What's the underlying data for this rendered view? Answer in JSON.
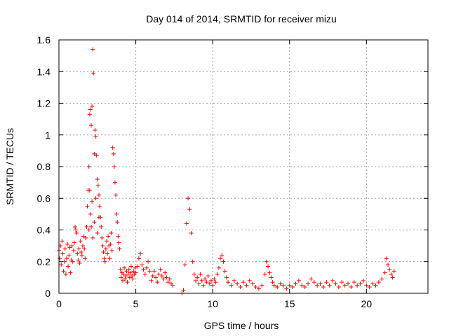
{
  "chart_data": {
    "type": "scatter",
    "title": "Day 014 of 2014, SRMTID for receiver mizu",
    "xlabel": "GPS time / hours",
    "ylabel": "SRMTID / TECUs",
    "xlim": [
      0,
      24
    ],
    "ylim": [
      0,
      1.6
    ],
    "xticks": [
      0,
      5,
      10,
      15,
      20
    ],
    "xtick_labels": [
      "0",
      "5",
      "10",
      "15",
      "20"
    ],
    "yticks": [
      0,
      0.2,
      0.4,
      0.6,
      0.8,
      1.0,
      1.2,
      1.4,
      1.6
    ],
    "ytick_labels": [
      "0",
      "0.2",
      "0.4",
      "0.6",
      "0.8",
      "1",
      "1.2",
      "1.4",
      "1.6"
    ],
    "grid": true,
    "marker": "+",
    "color": "#ff0000",
    "series": [
      {
        "name": "SRMTID",
        "points": [
          [
            0.0,
            0.27
          ],
          [
            0.05,
            0.22
          ],
          [
            0.1,
            0.3
          ],
          [
            0.15,
            0.18
          ],
          [
            0.2,
            0.33
          ],
          [
            0.25,
            0.25
          ],
          [
            0.3,
            0.14
          ],
          [
            0.35,
            0.2
          ],
          [
            0.4,
            0.28
          ],
          [
            0.45,
            0.12
          ],
          [
            0.5,
            0.22
          ],
          [
            0.55,
            0.31
          ],
          [
            0.6,
            0.17
          ],
          [
            0.65,
            0.24
          ],
          [
            0.7,
            0.29
          ],
          [
            0.75,
            0.13
          ],
          [
            0.8,
            0.21
          ],
          [
            0.85,
            0.3
          ],
          [
            0.9,
            0.2
          ],
          [
            0.95,
            0.27
          ],
          [
            1.0,
            0.32
          ],
          [
            1.05,
            0.42
          ],
          [
            1.1,
            0.4
          ],
          [
            1.15,
            0.38
          ],
          [
            1.2,
            0.25
          ],
          [
            1.25,
            0.21
          ],
          [
            1.3,
            0.28
          ],
          [
            1.35,
            0.19
          ],
          [
            1.4,
            0.33
          ],
          [
            1.45,
            0.26
          ],
          [
            1.5,
            0.24
          ],
          [
            1.55,
            0.3
          ],
          [
            1.6,
            0.36
          ],
          [
            1.65,
            0.28
          ],
          [
            1.7,
            0.22
          ],
          [
            1.75,
            0.35
          ],
          [
            1.8,
            0.42
          ],
          [
            1.85,
            0.55
          ],
          [
            1.9,
            0.65
          ],
          [
            1.95,
            0.8
          ],
          [
            2.0,
            1.13
          ],
          [
            2.05,
            1.16
          ],
          [
            2.1,
            1.06
          ],
          [
            2.15,
            1.18
          ],
          [
            2.2,
            1.54
          ],
          [
            2.25,
            1.39
          ],
          [
            2.3,
            0.88
          ],
          [
            2.35,
            1.03
          ],
          [
            2.4,
            0.99
          ],
          [
            2.45,
            0.87
          ],
          [
            2.5,
            0.72
          ],
          [
            2.55,
            0.68
          ],
          [
            2.6,
            0.62
          ],
          [
            2.65,
            0.55
          ],
          [
            2.7,
            0.48
          ],
          [
            2.75,
            0.42
          ],
          [
            2.8,
            0.35
          ],
          [
            2.85,
            0.3
          ],
          [
            2.9,
            0.26
          ],
          [
            2.95,
            0.22
          ],
          [
            2.0,
            0.65
          ],
          [
            2.05,
            0.5
          ],
          [
            2.1,
            0.42
          ],
          [
            2.15,
            0.58
          ],
          [
            2.2,
            0.35
          ],
          [
            2.3,
            0.45
          ],
          [
            2.4,
            0.6
          ],
          [
            2.5,
            0.38
          ],
          [
            2.6,
            0.48
          ],
          [
            1.95,
            0.4
          ],
          [
            3.0,
            0.2
          ],
          [
            3.05,
            0.28
          ],
          [
            3.1,
            0.33
          ],
          [
            3.15,
            0.25
          ],
          [
            3.2,
            0.36
          ],
          [
            3.25,
            0.3
          ],
          [
            3.3,
            0.22
          ],
          [
            3.35,
            0.31
          ],
          [
            3.4,
            0.38
          ],
          [
            3.45,
            0.27
          ],
          [
            3.5,
            0.92
          ],
          [
            3.55,
            0.88
          ],
          [
            3.6,
            0.8
          ],
          [
            3.65,
            0.7
          ],
          [
            3.7,
            0.62
          ],
          [
            3.75,
            0.5
          ],
          [
            3.8,
            0.45
          ],
          [
            3.85,
            0.36
          ],
          [
            3.9,
            0.32
          ],
          [
            3.95,
            0.28
          ],
          [
            4.0,
            0.15
          ],
          [
            4.05,
            0.1
          ],
          [
            4.1,
            0.13
          ],
          [
            4.15,
            0.08
          ],
          [
            4.2,
            0.12
          ],
          [
            4.25,
            0.16
          ],
          [
            4.3,
            0.09
          ],
          [
            4.35,
            0.11
          ],
          [
            4.4,
            0.14
          ],
          [
            4.45,
            0.07
          ],
          [
            4.5,
            0.12
          ],
          [
            4.55,
            0.15
          ],
          [
            4.6,
            0.1
          ],
          [
            4.65,
            0.13
          ],
          [
            4.7,
            0.17
          ],
          [
            4.75,
            0.11
          ],
          [
            4.8,
            0.09
          ],
          [
            4.85,
            0.14
          ],
          [
            4.9,
            0.12
          ],
          [
            4.95,
            0.16
          ],
          [
            5.0,
            0.13
          ],
          [
            5.1,
            0.17
          ],
          [
            5.2,
            0.22
          ],
          [
            5.3,
            0.25
          ],
          [
            5.4,
            0.18
          ],
          [
            5.5,
            0.15
          ],
          [
            5.6,
            0.12
          ],
          [
            5.7,
            0.16
          ],
          [
            5.8,
            0.2
          ],
          [
            5.9,
            0.14
          ],
          [
            6.0,
            0.08
          ],
          [
            6.1,
            0.11
          ],
          [
            6.2,
            0.14
          ],
          [
            6.3,
            0.1
          ],
          [
            6.4,
            0.07
          ],
          [
            6.5,
            0.12
          ],
          [
            6.6,
            0.15
          ],
          [
            6.7,
            0.11
          ],
          [
            6.8,
            0.09
          ],
          [
            6.9,
            0.13
          ],
          [
            7.0,
            0.1
          ],
          [
            7.1,
            0.07
          ],
          [
            7.2,
            0.09
          ],
          [
            7.3,
            0.06
          ],
          [
            7.4,
            0.05
          ],
          [
            8.0,
            0.0
          ],
          [
            8.1,
            0.02
          ],
          [
            8.2,
            0.18
          ],
          [
            8.3,
            0.44
          ],
          [
            8.4,
            0.6
          ],
          [
            8.5,
            0.53
          ],
          [
            8.6,
            0.38
          ],
          [
            8.7,
            0.2
          ],
          [
            8.8,
            0.12
          ],
          [
            8.9,
            0.08
          ],
          [
            9.0,
            0.1
          ],
          [
            9.1,
            0.06
          ],
          [
            9.2,
            0.12
          ],
          [
            9.3,
            0.08
          ],
          [
            9.4,
            0.05
          ],
          [
            9.5,
            0.09
          ],
          [
            9.6,
            0.07
          ],
          [
            9.7,
            0.11
          ],
          [
            9.8,
            0.06
          ],
          [
            9.9,
            0.08
          ],
          [
            10.0,
            0.05
          ],
          [
            10.1,
            0.09
          ],
          [
            10.2,
            0.07
          ],
          [
            10.3,
            0.12
          ],
          [
            10.4,
            0.16
          ],
          [
            10.5,
            0.22
          ],
          [
            10.6,
            0.24
          ],
          [
            10.7,
            0.2
          ],
          [
            10.8,
            0.14
          ],
          [
            10.9,
            0.1
          ],
          [
            11.0,
            0.07
          ],
          [
            11.2,
            0.05
          ],
          [
            11.4,
            0.08
          ],
          [
            11.6,
            0.06
          ],
          [
            11.8,
            0.04
          ],
          [
            12.0,
            0.07
          ],
          [
            12.2,
            0.05
          ],
          [
            12.4,
            0.08
          ],
          [
            12.6,
            0.06
          ],
          [
            12.8,
            0.04
          ],
          [
            13.0,
            0.03
          ],
          [
            13.2,
            0.05
          ],
          [
            13.4,
            0.12
          ],
          [
            13.5,
            0.2
          ],
          [
            13.6,
            0.17
          ],
          [
            13.7,
            0.13
          ],
          [
            13.8,
            0.1
          ],
          [
            13.9,
            0.07
          ],
          [
            14.0,
            0.05
          ],
          [
            14.2,
            0.04
          ],
          [
            14.4,
            0.06
          ],
          [
            14.6,
            0.05
          ],
          [
            14.8,
            0.03
          ],
          [
            15.0,
            0.05
          ],
          [
            15.2,
            0.04
          ],
          [
            15.4,
            0.06
          ],
          [
            15.6,
            0.08
          ],
          [
            15.8,
            0.05
          ],
          [
            16.0,
            0.04
          ],
          [
            16.2,
            0.06
          ],
          [
            16.4,
            0.09
          ],
          [
            16.6,
            0.07
          ],
          [
            16.8,
            0.05
          ],
          [
            17.0,
            0.06
          ],
          [
            17.2,
            0.04
          ],
          [
            17.4,
            0.07
          ],
          [
            17.6,
            0.05
          ],
          [
            17.8,
            0.08
          ],
          [
            18.0,
            0.06
          ],
          [
            18.2,
            0.04
          ],
          [
            18.4,
            0.07
          ],
          [
            18.6,
            0.05
          ],
          [
            18.8,
            0.06
          ],
          [
            19.0,
            0.04
          ],
          [
            19.2,
            0.07
          ],
          [
            19.4,
            0.05
          ],
          [
            19.6,
            0.06
          ],
          [
            19.8,
            0.08
          ],
          [
            20.0,
            0.05
          ],
          [
            20.2,
            0.04
          ],
          [
            20.4,
            0.06
          ],
          [
            20.6,
            0.05
          ],
          [
            20.8,
            0.07
          ],
          [
            21.0,
            0.09
          ],
          [
            21.2,
            0.13
          ],
          [
            21.3,
            0.22
          ],
          [
            21.4,
            0.18
          ],
          [
            21.5,
            0.15
          ],
          [
            21.6,
            0.12
          ],
          [
            21.7,
            0.1
          ],
          [
            21.8,
            0.14
          ]
        ]
      }
    ]
  }
}
